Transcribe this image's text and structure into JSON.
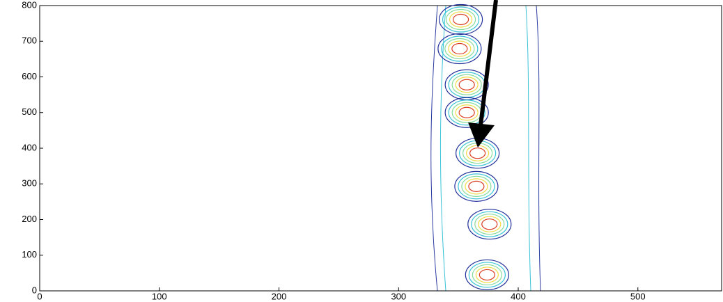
{
  "chart_data": {
    "type": "contour",
    "x": [
      352,
      351,
      357,
      357,
      366,
      365,
      376,
      374
    ],
    "y": [
      761,
      679,
      578,
      500,
      386,
      293,
      187,
      45
    ],
    "level_colors": [
      "#22309a",
      "#37c3d6",
      "#86dc9c",
      "#f0dc46",
      "#dc3c20"
    ],
    "xlim": [
      0,
      570
    ],
    "ylim": [
      0,
      800
    ],
    "xticks": [
      0,
      100,
      200,
      300,
      400,
      500
    ],
    "yticks": [
      0,
      100,
      200,
      300,
      400,
      500,
      600,
      700,
      800
    ]
  }
}
